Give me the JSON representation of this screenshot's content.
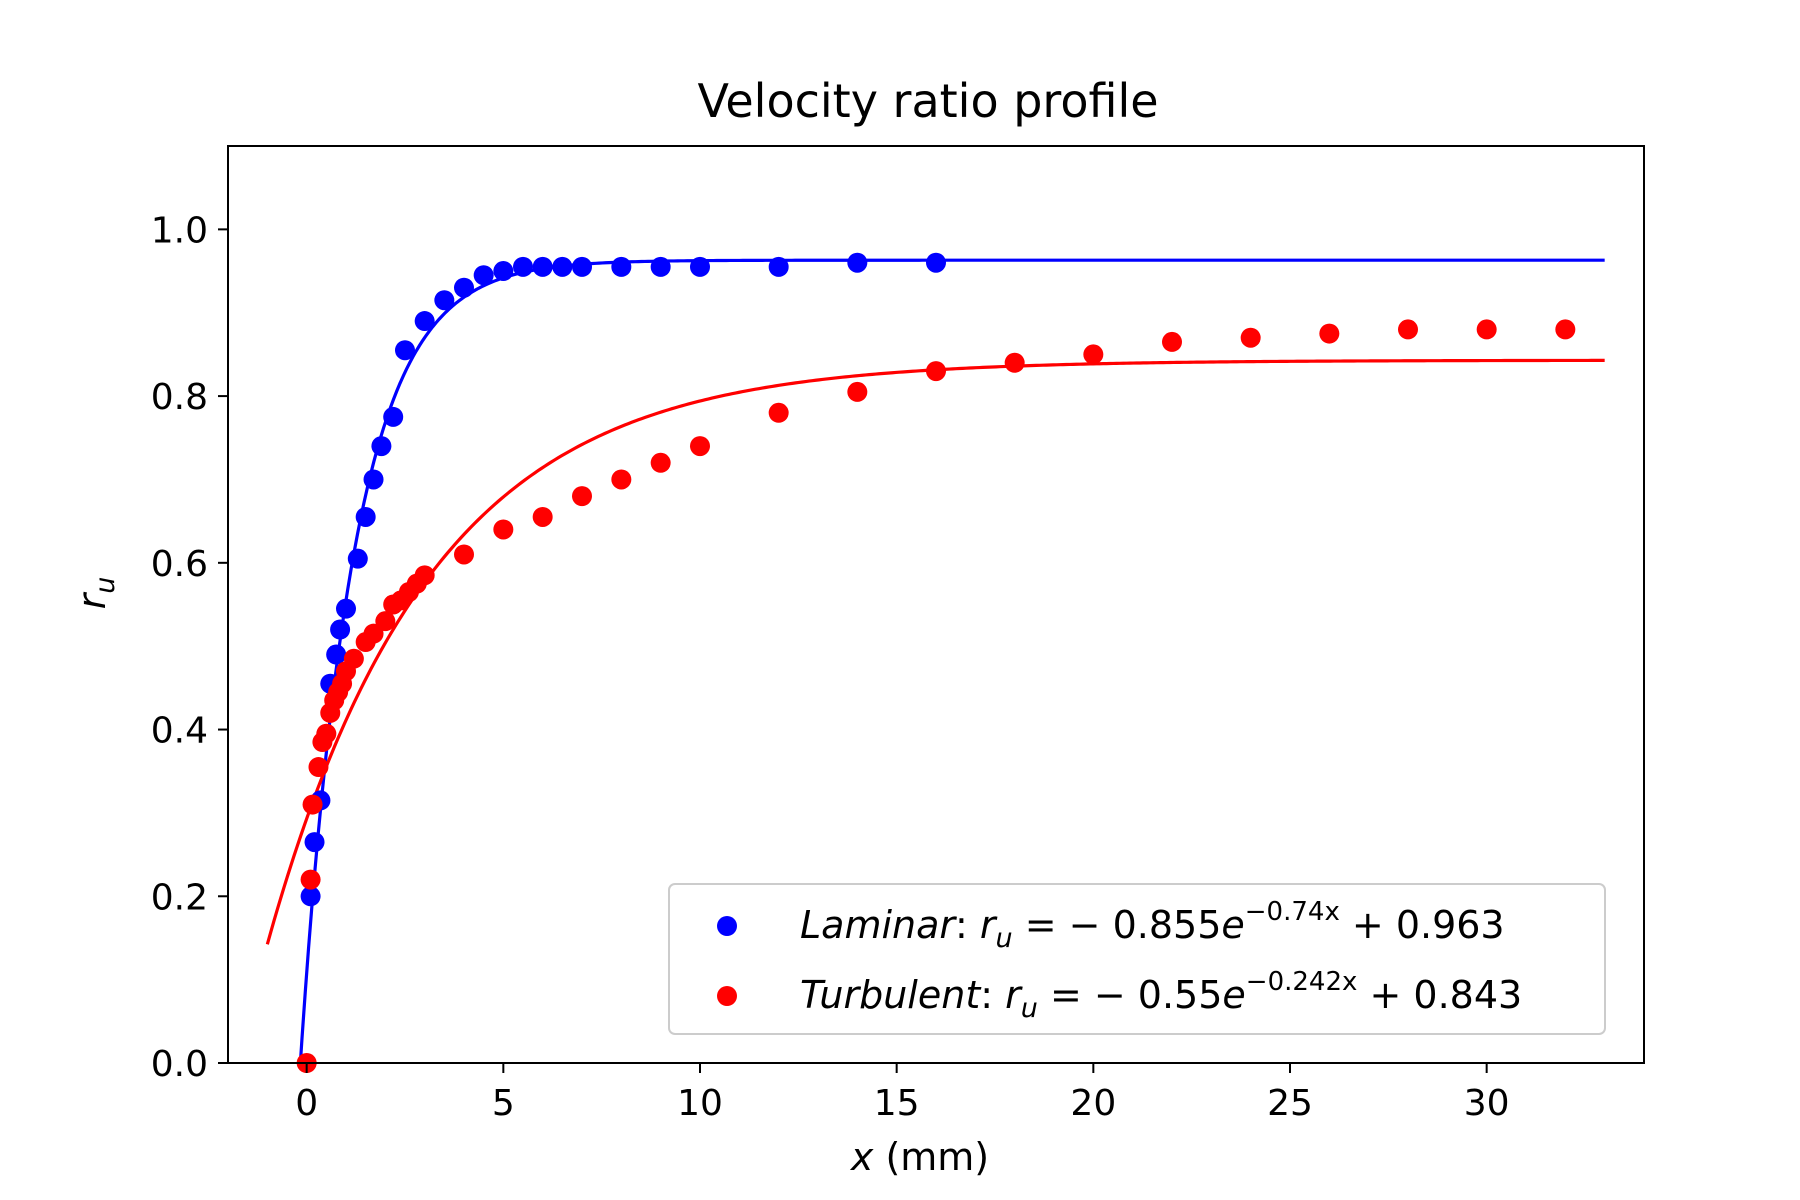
{
  "chart_data": {
    "type": "scatter",
    "title": "Velocity ratio profile",
    "xlabel": {
      "var": "x",
      "unit": " (mm)"
    },
    "ylabel": {
      "base": "r",
      "sub": "u"
    },
    "xlim": [
      -2,
      34
    ],
    "ylim": [
      0,
      1.1
    ],
    "xticks": [
      0,
      5,
      10,
      15,
      20,
      25,
      30
    ],
    "yticks": [
      0.0,
      0.2,
      0.4,
      0.6,
      0.8,
      1.0
    ],
    "xtick_labels": [
      "0",
      "5",
      "10",
      "15",
      "20",
      "25",
      "30"
    ],
    "ytick_labels": [
      "0.0",
      "0.2",
      "0.4",
      "0.6",
      "0.8",
      "1.0"
    ],
    "legend_position": "lower-right",
    "series": [
      {
        "name": "Laminar",
        "color": "#0000ff",
        "marker": "circle",
        "legend": {
          "name": "Laminar",
          "colon": ": ",
          "lhs": "r",
          "lhs_sub": "u",
          "eq": " = − 0.855",
          "e": "e",
          "exp": "−0.74x",
          "tail": " + 0.963"
        },
        "fit": {
          "a": 0.855,
          "b": 0.74,
          "c": 0.963,
          "x_range": [
            -0.2,
            33
          ]
        },
        "x": [
          0.1,
          0.2,
          0.35,
          0.6,
          0.75,
          0.85,
          1.0,
          1.3,
          1.5,
          1.7,
          1.9,
          2.2,
          2.5,
          3.0,
          3.5,
          4.0,
          4.5,
          5.0,
          5.5,
          6.0,
          6.5,
          7.0,
          8.0,
          9.0,
          10.0,
          12.0,
          14.0,
          16.0
        ],
        "y": [
          0.2,
          0.265,
          0.315,
          0.455,
          0.49,
          0.52,
          0.545,
          0.605,
          0.655,
          0.7,
          0.74,
          0.775,
          0.855,
          0.89,
          0.915,
          0.93,
          0.945,
          0.95,
          0.955,
          0.955,
          0.955,
          0.955,
          0.955,
          0.955,
          0.955,
          0.955,
          0.96,
          0.96
        ]
      },
      {
        "name": "Turbulent",
        "color": "#ff0000",
        "marker": "circle",
        "legend": {
          "name": "Turbulent",
          "colon": ": ",
          "lhs": "r",
          "lhs_sub": "u",
          "eq": " = − 0.55",
          "e": "e",
          "exp": "−0.242x",
          "tail": " + 0.843"
        },
        "fit": {
          "a": 0.55,
          "b": 0.242,
          "c": 0.843,
          "x_range": [
            -1,
            33
          ]
        },
        "x": [
          0.0,
          0.1,
          0.15,
          0.3,
          0.4,
          0.5,
          0.6,
          0.7,
          0.8,
          0.9,
          1.0,
          1.2,
          1.5,
          1.7,
          2.0,
          2.2,
          2.4,
          2.6,
          2.8,
          3.0,
          4.0,
          5.0,
          6.0,
          7.0,
          8.0,
          9.0,
          10.0,
          12.0,
          14.0,
          16.0,
          18.0,
          20.0,
          22.0,
          24.0,
          26.0,
          28.0,
          30.0,
          32.0
        ],
        "y": [
          0.0,
          0.22,
          0.31,
          0.355,
          0.385,
          0.395,
          0.42,
          0.435,
          0.445,
          0.455,
          0.47,
          0.485,
          0.505,
          0.515,
          0.53,
          0.55,
          0.555,
          0.565,
          0.575,
          0.585,
          0.61,
          0.64,
          0.655,
          0.68,
          0.7,
          0.72,
          0.74,
          0.78,
          0.805,
          0.83,
          0.84,
          0.85,
          0.865,
          0.87,
          0.875,
          0.88,
          0.88,
          0.88
        ]
      }
    ]
  }
}
